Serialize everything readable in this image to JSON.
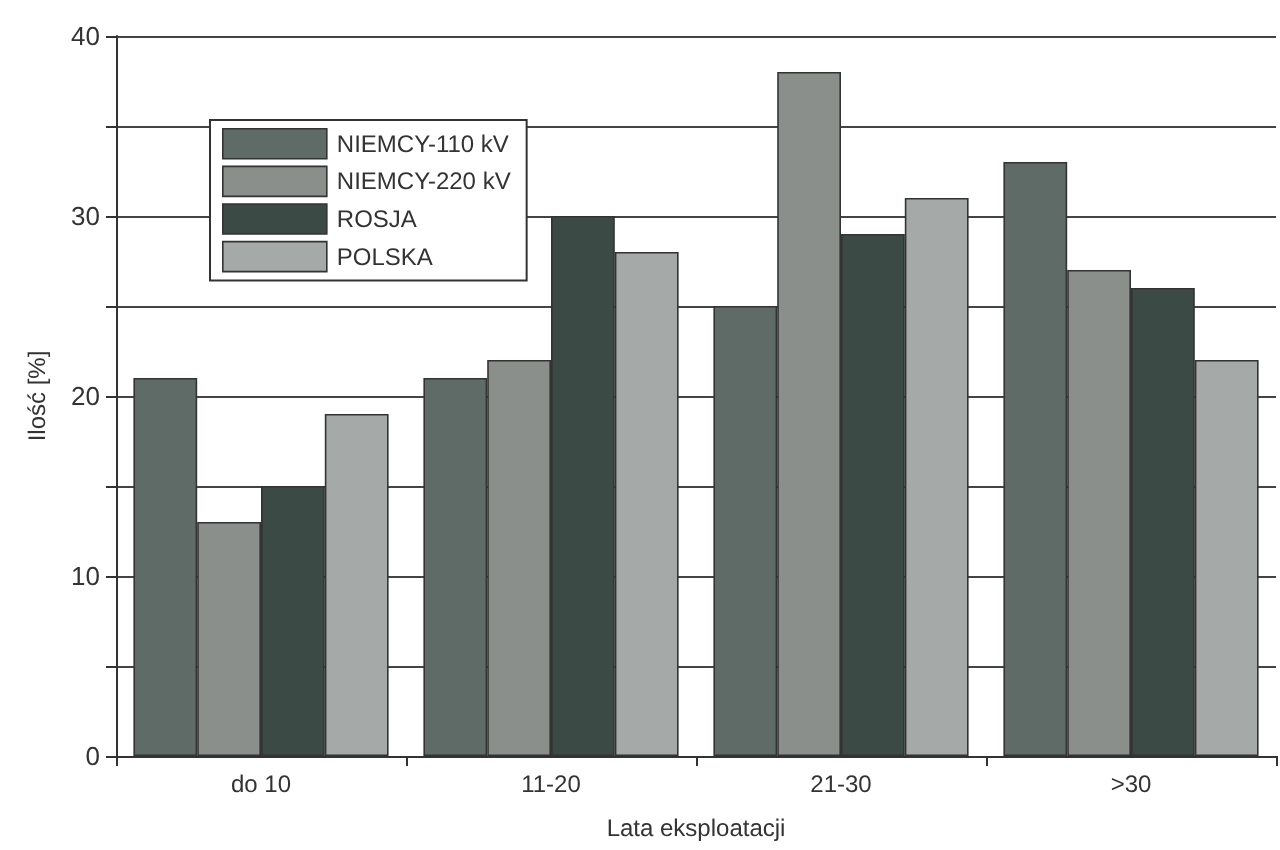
{
  "chart_data": {
    "type": "bar",
    "xlabel": "Lata eksploatacji",
    "ylabel": "Ilość [%]",
    "categories": [
      "do 10",
      "11-20",
      "21-30",
      ">30"
    ],
    "series": [
      {
        "name": "NIEMCY-110 kV",
        "color": "#5f6b66",
        "values": [
          21,
          21,
          25,
          33
        ]
      },
      {
        "name": "NIEMCY-220 kV",
        "color": "#8a8f8c",
        "values": [
          13,
          22,
          38,
          27
        ]
      },
      {
        "name": "ROSJA",
        "color": "#3c4a45",
        "values": [
          15,
          30,
          29,
          26
        ]
      },
      {
        "name": "POLSKA",
        "color": "#a5a9a7",
        "values": [
          19,
          28,
          31,
          22
        ]
      }
    ],
    "ylim": [
      0,
      40
    ],
    "yticks": [
      0,
      {
        "value": 5,
        "label": null
      },
      10,
      {
        "value": 15,
        "label": null
      },
      20,
      {
        "value": 25,
        "label": null
      },
      30,
      {
        "value": 35,
        "label": null
      },
      40
    ],
    "grid": "y",
    "legend": "top left"
  }
}
